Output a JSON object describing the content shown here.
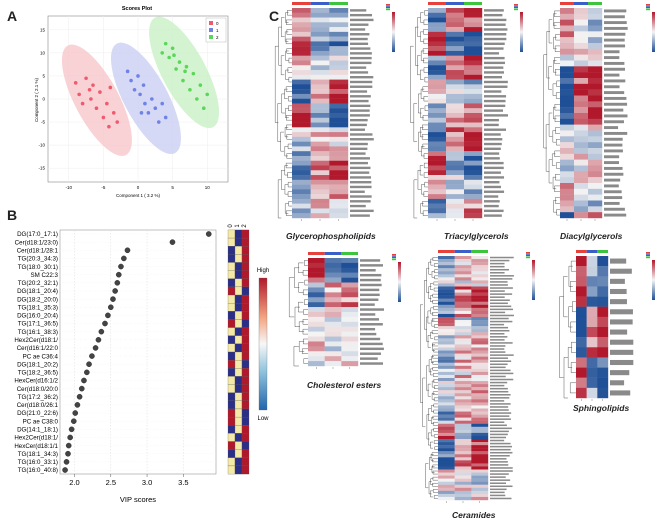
{
  "panel_labels": {
    "a": "A",
    "b": "B",
    "c": "C"
  },
  "scores_plot": {
    "title": "Scores Plot",
    "xlabel": "Component 1 ( 3.2 %)",
    "ylabel": "Component 2 ( 2.1 %)",
    "xticks": [
      "-10",
      "-5",
      "0",
      "5",
      "10"
    ],
    "yticks": [
      "-15",
      "-10",
      "-5",
      "0",
      "5",
      "10",
      "15"
    ],
    "legend": [
      {
        "label": "0",
        "color": "#f05a6e"
      },
      {
        "label": "1",
        "color": "#6f82e6"
      },
      {
        "label": "2",
        "color": "#5ad65a"
      }
    ],
    "groups": [
      {
        "color": "#f05a6e",
        "fill": "#f7c3c8",
        "points": [
          [
            -9,
            3.5
          ],
          [
            -8.5,
            1
          ],
          [
            -8,
            -1
          ],
          [
            -7.5,
            4.5
          ],
          [
            -7,
            2
          ],
          [
            -6.8,
            0
          ],
          [
            -6.5,
            3
          ],
          [
            -6,
            -2
          ],
          [
            -5.5,
            1.5
          ],
          [
            -5,
            -4
          ],
          [
            -4.5,
            -1
          ],
          [
            -4.2,
            -6
          ],
          [
            -4,
            2.5
          ],
          [
            -3.5,
            -3
          ],
          [
            -3,
            -5
          ]
        ]
      },
      {
        "color": "#6f82e6",
        "fill": "#c7ccf2",
        "points": [
          [
            -1.5,
            6
          ],
          [
            -1,
            4
          ],
          [
            -0.5,
            2
          ],
          [
            0,
            5
          ],
          [
            0.3,
            1
          ],
          [
            0.8,
            3
          ],
          [
            1,
            -1
          ],
          [
            1.5,
            -3
          ],
          [
            2,
            0
          ],
          [
            2.5,
            -2
          ],
          [
            3,
            -5
          ],
          [
            3.5,
            -1
          ],
          [
            4,
            -4
          ],
          [
            0.5,
            -3
          ]
        ]
      },
      {
        "color": "#5ad65a",
        "fill": "#c6efc2",
        "points": [
          [
            3.5,
            10
          ],
          [
            4,
            12
          ],
          [
            4.5,
            9
          ],
          [
            5,
            11
          ],
          [
            5.5,
            6.5
          ],
          [
            6,
            8
          ],
          [
            6.5,
            4
          ],
          [
            7,
            7
          ],
          [
            7.5,
            2
          ],
          [
            8,
            5.5
          ],
          [
            8.5,
            0
          ],
          [
            9,
            3
          ],
          [
            9.5,
            -2
          ],
          [
            10,
            1
          ],
          [
            6.8,
            6
          ],
          [
            5.2,
            9.5
          ]
        ]
      }
    ]
  },
  "vip_plot": {
    "xlabel": "VIP scores",
    "xticks": [
      "2.0",
      "2.5",
      "3.0",
      "3.5"
    ],
    "heat_header": [
      "0",
      "1",
      "2"
    ],
    "legend_high": "High",
    "legend_low": "Low",
    "features": [
      {
        "name": "DG(17:0_17:1)",
        "vip": 3.85
      },
      {
        "name": "Cer(d18:1/23:0)",
        "vip": 3.35
      },
      {
        "name": "Cer(d18:1/28:1",
        "vip": 2.73
      },
      {
        "name": "TG(20:3_34:3)",
        "vip": 2.68
      },
      {
        "name": "TG(18:0_30:1)",
        "vip": 2.64
      },
      {
        "name": "SM C22:3",
        "vip": 2.61
      },
      {
        "name": "TG(20:2_32:1)",
        "vip": 2.59
      },
      {
        "name": "DG(18:1_20:4)",
        "vip": 2.56
      },
      {
        "name": "DG(18:2_20:0)",
        "vip": 2.53
      },
      {
        "name": "TG(18:1_35:3)",
        "vip": 2.5
      },
      {
        "name": "DG(16:0_20:4)",
        "vip": 2.46
      },
      {
        "name": "TG(17:1_36:5)",
        "vip": 2.42
      },
      {
        "name": "TG(16:1_38:3)",
        "vip": 2.37
      },
      {
        "name": "Hex2Cer(d18:1/",
        "vip": 2.33
      },
      {
        "name": "Cer(d16:1/22:0",
        "vip": 2.29
      },
      {
        "name": "PC ae C36:4",
        "vip": 2.24
      },
      {
        "name": "DG(18:1_20:2)",
        "vip": 2.2
      },
      {
        "name": "TG(18:2_36:5)",
        "vip": 2.17
      },
      {
        "name": "HexCer(d16:1/2",
        "vip": 2.13
      },
      {
        "name": "Cer(d18:0/20:0",
        "vip": 2.1
      },
      {
        "name": "TG(17:2_36:2)",
        "vip": 2.07
      },
      {
        "name": "Cer(d18:0/26:1",
        "vip": 2.04
      },
      {
        "name": "DG(21:0_22:6)",
        "vip": 2.01
      },
      {
        "name": "PC ae C38:0",
        "vip": 1.99
      },
      {
        "name": "DG(14:1_18:1)",
        "vip": 1.96
      },
      {
        "name": "Hex2Cer(d18:1/",
        "vip": 1.94
      },
      {
        "name": "HexCer(d18:1/1",
        "vip": 1.92
      },
      {
        "name": "TG(18:1_34:3)",
        "vip": 1.91
      },
      {
        "name": "TG(16:0_33:1)",
        "vip": 1.89
      },
      {
        "name": "TG(16:0_40:8)",
        "vip": 1.87
      }
    ]
  },
  "heatmaps": {
    "glycerophospholipids": {
      "title": "Glycerophospholipids",
      "rows": 44,
      "seed": 11
    },
    "triacylglycerols": {
      "title": "Triacylglycerols",
      "rows": 44,
      "seed": 23
    },
    "diacylglycerols": {
      "title": "Diacylglycerols",
      "rows": 36,
      "seed": 37
    },
    "cholesterol_esters": {
      "title": "Cholesterol esters",
      "rows": 22,
      "seed": 41
    },
    "ceramides": {
      "title": "Ceramides",
      "rows": 80,
      "seed": 53
    },
    "sphingolipids": {
      "title": "Sphingolipids",
      "rows": 14,
      "seed": 67
    }
  },
  "group_colors": [
    "#e8413c",
    "#3a5fc8",
    "#3cc43c"
  ],
  "heat_colors": {
    "low": "#1f4f96",
    "mid": "#f4f4f4",
    "high": "#b2182b"
  }
}
